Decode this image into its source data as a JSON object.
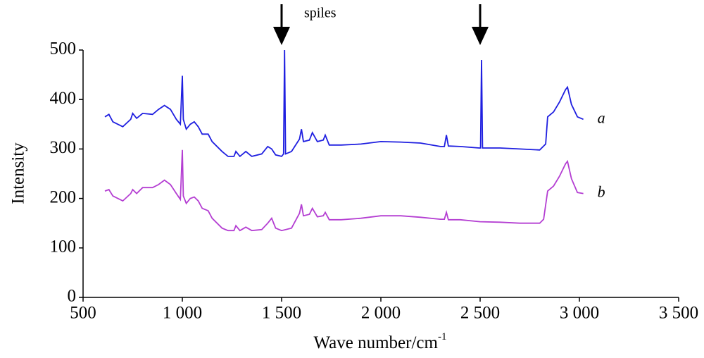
{
  "chart_data": {
    "type": "line",
    "xlabel": {
      "text": "Wave number/cm",
      "superscript": "-1"
    },
    "ylabel": "Intensity",
    "annotation": {
      "text": "spiles",
      "arrows_x": [
        1500,
        2500
      ]
    },
    "xlim": [
      500,
      3500
    ],
    "xticks": [
      500,
      {
        "value": 1000,
        "label": "1 000"
      },
      {
        "value": 1500,
        "label": "1 500"
      },
      {
        "value": 2000,
        "label": "2 000"
      },
      {
        "value": 2500,
        "label": "2 500"
      },
      {
        "value": 3000,
        "label": "3 000"
      },
      {
        "value": 3500,
        "label": "3 500"
      }
    ],
    "ylim": [
      0,
      500
    ],
    "yticks": [
      0,
      100,
      200,
      300,
      400,
      500
    ],
    "series": [
      {
        "name": "a",
        "color": "#1f1fe0",
        "x": [
          610,
          630,
          650,
          700,
          740,
          750,
          770,
          800,
          850,
          880,
          910,
          940,
          970,
          990,
          1000,
          1005,
          1020,
          1040,
          1060,
          1080,
          1100,
          1130,
          1150,
          1200,
          1230,
          1260,
          1270,
          1290,
          1320,
          1350,
          1400,
          1430,
          1450,
          1470,
          1500,
          1510,
          1515,
          1520,
          1550,
          1590,
          1600,
          1610,
          1640,
          1655,
          1680,
          1710,
          1720,
          1740,
          1800,
          1900,
          2000,
          2100,
          2200,
          2300,
          2320,
          2330,
          2340,
          2400,
          2495,
          2502,
          2507,
          2512,
          2600,
          2700,
          2800,
          2830,
          2840,
          2870,
          2900,
          2930,
          2940,
          2960,
          2990,
          3020
        ],
        "values": [
          365,
          370,
          355,
          345,
          360,
          372,
          362,
          372,
          370,
          380,
          388,
          380,
          360,
          350,
          448,
          360,
          340,
          350,
          355,
          345,
          330,
          330,
          315,
          295,
          285,
          285,
          295,
          285,
          295,
          285,
          290,
          305,
          300,
          288,
          285,
          290,
          500,
          290,
          295,
          320,
          340,
          315,
          318,
          333,
          315,
          318,
          328,
          308,
          308,
          310,
          315,
          314,
          312,
          305,
          305,
          328,
          306,
          305,
          302,
          302,
          480,
          302,
          302,
          300,
          298,
          310,
          365,
          375,
          395,
          420,
          425,
          390,
          365,
          360
        ]
      },
      {
        "name": "b",
        "color": "#b43ed2",
        "x": [
          610,
          630,
          650,
          700,
          740,
          750,
          770,
          800,
          850,
          880,
          910,
          940,
          970,
          990,
          1000,
          1005,
          1020,
          1040,
          1060,
          1080,
          1100,
          1130,
          1150,
          1200,
          1230,
          1260,
          1270,
          1290,
          1320,
          1350,
          1400,
          1430,
          1450,
          1470,
          1500,
          1550,
          1590,
          1600,
          1610,
          1640,
          1655,
          1680,
          1710,
          1720,
          1740,
          1800,
          1900,
          2000,
          2100,
          2200,
          2300,
          2320,
          2330,
          2340,
          2400,
          2500,
          2600,
          2700,
          2800,
          2820,
          2840,
          2870,
          2900,
          2930,
          2940,
          2960,
          2990,
          3020
        ],
        "values": [
          215,
          218,
          205,
          195,
          210,
          218,
          210,
          222,
          222,
          228,
          237,
          228,
          210,
          198,
          298,
          205,
          190,
          200,
          203,
          195,
          180,
          175,
          160,
          140,
          135,
          135,
          145,
          135,
          142,
          135,
          137,
          150,
          160,
          140,
          135,
          140,
          170,
          188,
          165,
          168,
          180,
          163,
          165,
          172,
          157,
          157,
          160,
          165,
          165,
          162,
          158,
          158,
          172,
          157,
          157,
          153,
          152,
          150,
          150,
          158,
          215,
          225,
          245,
          270,
          275,
          240,
          212,
          210
        ]
      }
    ]
  }
}
